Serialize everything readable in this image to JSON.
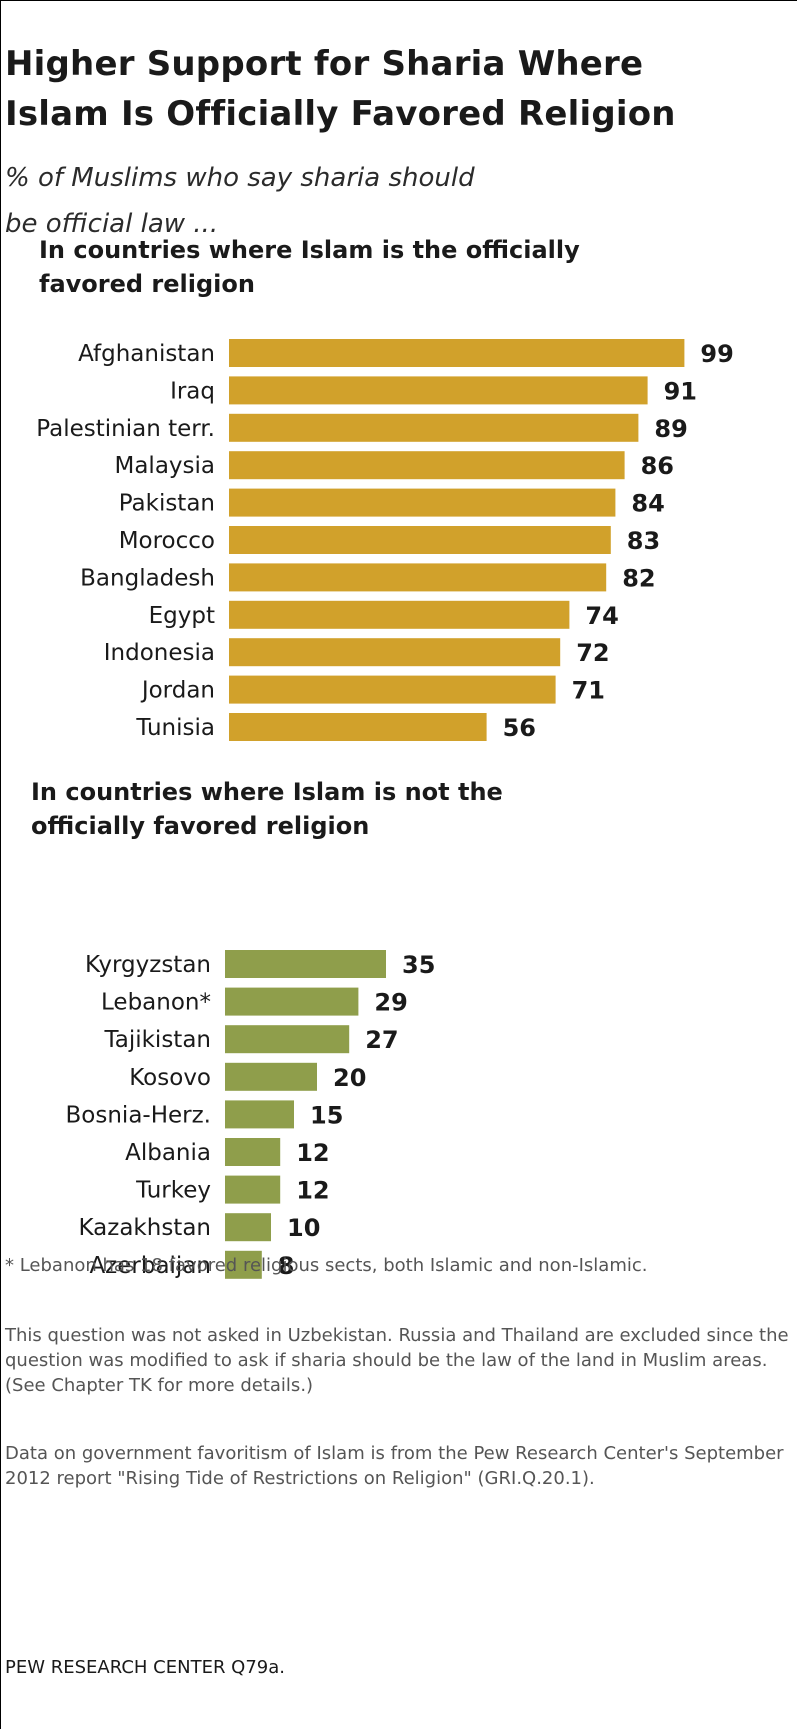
{
  "header": {
    "title_line1": "Higher Support for Sharia Where",
    "title_line2": "Islam Is Officially Favored Religion",
    "subtitle_line1": "% of Muslims who say sharia should",
    "subtitle_line2": "be official  law ..."
  },
  "chart_data": [
    {
      "type": "bar",
      "orientation": "horizontal",
      "title_line1": "In countries where Islam is the officially",
      "title_line2": "favored religion",
      "color": "#d1a12b",
      "categories": [
        "Afghanistan",
        "Iraq",
        "Palestinian terr.",
        "Malaysia",
        "Pakistan",
        "Morocco",
        "Bangladesh",
        "Egypt",
        "Indonesia",
        "Jordan",
        "Tunisia"
      ],
      "values": [
        99,
        91,
        89,
        86,
        84,
        83,
        82,
        74,
        72,
        71,
        56
      ],
      "value_labels": [
        "99",
        "91",
        "89",
        "86",
        "84",
        "83",
        "82",
        "74",
        "72",
        "71",
        "56"
      ],
      "xlim": [
        0,
        100
      ]
    },
    {
      "type": "bar",
      "orientation": "horizontal",
      "title_line1": "In countries where Islam is not the",
      "title_line2": "officially favored religion",
      "color": "#8f9e4b",
      "categories": [
        "Kyrgyzstan",
        "Lebanon*",
        "Tajikistan",
        "Kosovo",
        "Bosnia-Herz.",
        "Albania",
        "Turkey",
        "Kazakhstan",
        "Azerbaijan"
      ],
      "values": [
        35,
        29,
        27,
        20,
        15,
        12,
        12,
        10,
        8
      ],
      "value_labels": [
        "35",
        "29",
        "27",
        "20",
        "15",
        "12",
        "12",
        "10",
        "8"
      ],
      "xlim": [
        0,
        100
      ]
    }
  ],
  "notes": {
    "lebanon": "* Lebanon has 18 favored religious sects, both Islamic and non-Islamic.",
    "uzbekistan": "This question was not asked in Uzbekistan. Russia and Thailand are excluded since the question was modified to ask if sharia should be the law of the land in Muslim areas. (See Chapter TK for more details.)",
    "data_source": "Data on government favoritism of Islam is from the Pew Research Center's September 2012 report \"Rising Tide of Restrictions on Religion\" (GRI.Q.20.1).",
    "source": "PEW RESEARCH  CENTER Q79a."
  }
}
